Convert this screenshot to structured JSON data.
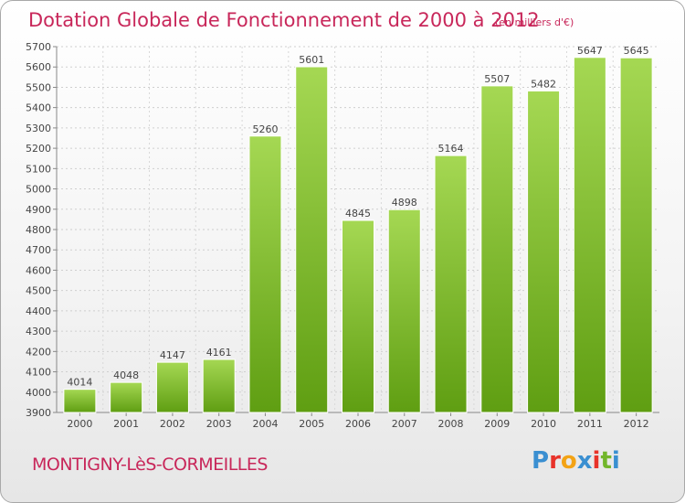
{
  "chart_data": {
    "type": "bar",
    "title": "Dotation Globale de Fonctionnement de 2000 à 2012",
    "subtitle": "(en milliers d'€)",
    "categories": [
      "2000",
      "2001",
      "2002",
      "2003",
      "2004",
      "2005",
      "2006",
      "2007",
      "2008",
      "2009",
      "2010",
      "2011",
      "2012"
    ],
    "values": [
      4014,
      4048,
      4147,
      4161,
      5260,
      5601,
      4845,
      4898,
      5164,
      5507,
      5482,
      5647,
      5645
    ],
    "ylim": [
      3900,
      5700
    ],
    "yticks": [
      3900,
      4000,
      4100,
      4200,
      4300,
      4400,
      4500,
      4600,
      4700,
      4800,
      4900,
      5000,
      5100,
      5200,
      5300,
      5400,
      5500,
      5600,
      5700
    ],
    "grid": true,
    "bar_color_top": "#a5d853",
    "bar_color_bottom": "#5f9e12"
  },
  "footer": {
    "commune": "MONTIGNY-LèS-CORMEILLES",
    "logo_letters": [
      "P",
      "r",
      "o",
      "x",
      "i",
      "t",
      "i"
    ],
    "logo_colors": [
      "#3a8fd1",
      "#e8332a",
      "#f3a315",
      "#3a8fd1",
      "#e8332a",
      "#72b62b",
      "#3a8fd1"
    ]
  },
  "colors": {
    "accent": "#c8275a"
  }
}
